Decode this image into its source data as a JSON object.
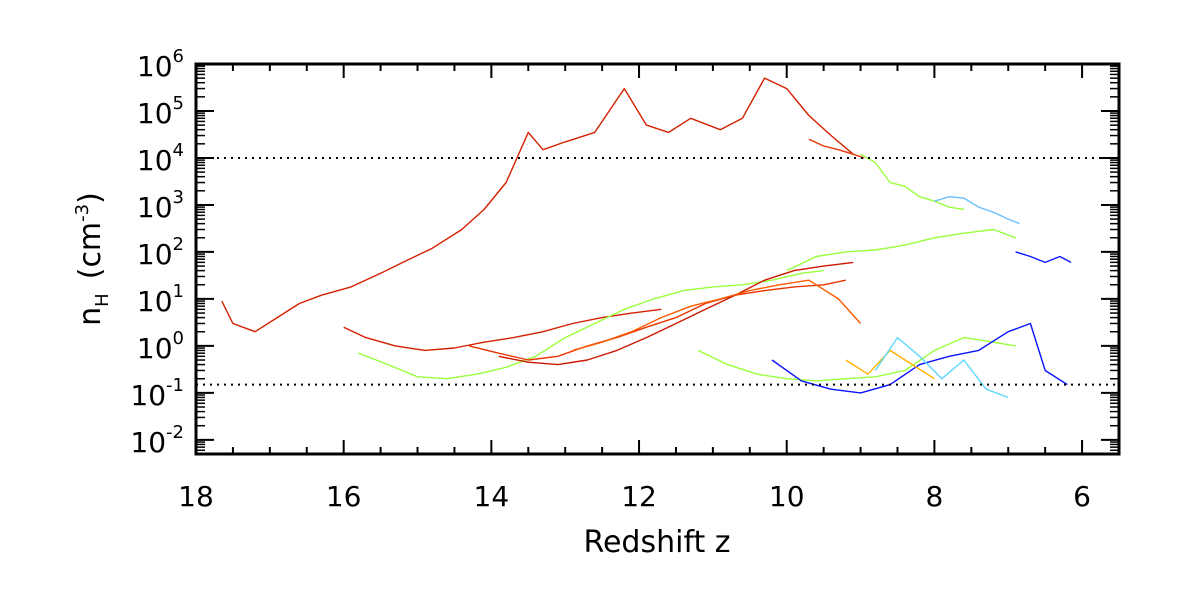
{
  "chart_data": {
    "type": "line",
    "xlabel": "Redshift z",
    "ylabel": {
      "symbol": "n",
      "subscript": "H",
      "unit_open": "(cm",
      "unit_exp": "-3",
      "unit_close": ")"
    },
    "x_axis": {
      "range": [
        18,
        5.5
      ],
      "reversed": true,
      "ticks": [
        "18",
        "16",
        "14",
        "12",
        "10",
        "8",
        "6"
      ],
      "tick_values": [
        18,
        16,
        14,
        12,
        10,
        8,
        6
      ]
    },
    "y_axis": {
      "scale": "log",
      "range": [
        0.005,
        1000000
      ],
      "ticks": [
        {
          "value": 1000000,
          "base": "10",
          "exp": "6"
        },
        {
          "value": 100000,
          "base": "10",
          "exp": "5"
        },
        {
          "value": 10000,
          "base": "10",
          "exp": "4"
        },
        {
          "value": 1000,
          "base": "10",
          "exp": "3"
        },
        {
          "value": 100,
          "base": "10",
          "exp": "2"
        },
        {
          "value": 10,
          "base": "10",
          "exp": "1"
        },
        {
          "value": 1,
          "base": "10",
          "exp": "0"
        },
        {
          "value": 0.1,
          "base": "10",
          "exp": "-1"
        },
        {
          "value": 0.01,
          "base": "10",
          "exp": "-2"
        }
      ]
    },
    "reference_lines": [
      {
        "y": 10000,
        "style": "dotted"
      },
      {
        "y": 0.15,
        "style": "dotted"
      }
    ],
    "grid": false,
    "legend": "none",
    "series": [
      {
        "color": "#d42000",
        "x": [
          17.65,
          17.5,
          17.2,
          16.9,
          16.6,
          16.3,
          15.9,
          15.5,
          15.2,
          14.8,
          14.4,
          14.1,
          13.8,
          13.5,
          13.3,
          13.0,
          12.6,
          12.2,
          11.9,
          11.6,
          11.3,
          10.9,
          10.6,
          10.3,
          10.0,
          9.7,
          9.4,
          9.1
        ],
        "y": [
          9,
          3,
          2,
          4,
          8,
          12,
          18,
          35,
          60,
          120,
          300,
          800,
          3000,
          35000,
          15000,
          22000,
          35000,
          300000,
          50000,
          35000,
          70000,
          40000,
          70000,
          500000,
          300000,
          80000,
          30000,
          12000
        ]
      },
      {
        "color": "#e83400",
        "x": [
          9.7,
          9.5,
          9.3,
          9.1,
          8.95
        ],
        "y": [
          25000,
          18000,
          15000,
          12000,
          10000
        ]
      },
      {
        "color": "#9aff3c",
        "x": [
          9.0,
          8.8,
          8.6,
          8.4,
          8.2,
          8.0,
          7.8,
          7.6
        ],
        "y": [
          12000,
          8000,
          3000,
          2500,
          1500,
          1200,
          900,
          800
        ]
      },
      {
        "color": "#6cbfff",
        "x": [
          8.0,
          7.8,
          7.6,
          7.4,
          7.2,
          7.0,
          6.85
        ],
        "y": [
          1200,
          1500,
          1400,
          900,
          700,
          500,
          400
        ]
      },
      {
        "color": "#0a14ff",
        "x": [
          6.9,
          6.7,
          6.5,
          6.3,
          6.15
        ],
        "y": [
          100,
          80,
          60,
          80,
          60
        ]
      },
      {
        "color": "#9aff3c",
        "x": [
          10.0,
          9.6,
          9.2,
          8.8,
          8.4,
          8.0,
          7.6,
          7.2,
          6.9
        ],
        "y": [
          40,
          80,
          100,
          110,
          140,
          200,
          250,
          300,
          200
        ]
      },
      {
        "color": "#d42000",
        "x": [
          16.0,
          15.7,
          15.3,
          14.9,
          14.5,
          14.1,
          13.7,
          13.3,
          12.9,
          12.5,
          12.1,
          11.7
        ],
        "y": [
          2.5,
          1.5,
          1.0,
          0.8,
          0.9,
          1.2,
          1.5,
          2.0,
          3.0,
          4.0,
          5.0,
          6.0
        ]
      },
      {
        "color": "#9aff3c",
        "x": [
          15.8,
          15.4,
          15.0,
          14.6,
          14.2,
          13.8,
          13.4,
          13.0,
          12.6,
          12.2,
          11.8,
          11.4,
          11.0,
          10.6,
          10.2,
          9.8,
          9.5
        ],
        "y": [
          0.7,
          0.4,
          0.22,
          0.2,
          0.25,
          0.35,
          0.6,
          1.5,
          3,
          6,
          10,
          15,
          18,
          20,
          25,
          35,
          40
        ]
      },
      {
        "color": "#e83400",
        "x": [
          14.3,
          13.9,
          13.5,
          13.1,
          12.7,
          12.3,
          11.9,
          11.5,
          11.1,
          10.7,
          10.3,
          9.9,
          9.5,
          9.2
        ],
        "y": [
          1.0,
          0.7,
          0.5,
          0.6,
          1.0,
          1.5,
          2.5,
          4,
          8,
          12,
          15,
          18,
          20,
          25
        ]
      },
      {
        "color": "#cc1800",
        "x": [
          13.9,
          13.5,
          13.1,
          12.7,
          12.3,
          11.9,
          11.5,
          11.1,
          10.7,
          10.3,
          9.9,
          9.5,
          9.1
        ],
        "y": [
          0.6,
          0.45,
          0.4,
          0.5,
          0.8,
          1.5,
          3,
          6,
          12,
          25,
          40,
          50,
          60
        ]
      },
      {
        "color": "#ff5a00",
        "x": [
          12.9,
          12.5,
          12.1,
          11.7,
          11.3,
          10.9,
          10.5,
          10.1,
          9.7,
          9.3,
          9.0
        ],
        "y": [
          0.8,
          1.2,
          2,
          4,
          7,
          10,
          15,
          20,
          25,
          10,
          3
        ]
      },
      {
        "color": "#9aff3c",
        "x": [
          11.2,
          10.8,
          10.4,
          10.0,
          9.6,
          9.2,
          8.8,
          8.4,
          8.0,
          7.6,
          7.2,
          6.9
        ],
        "y": [
          0.8,
          0.4,
          0.25,
          0.2,
          0.18,
          0.2,
          0.22,
          0.3,
          0.8,
          1.5,
          1.2,
          1.0
        ]
      },
      {
        "color": "#0a14ff",
        "x": [
          10.2,
          9.8,
          9.4,
          9.0,
          8.6,
          8.2,
          7.8,
          7.4,
          7.0,
          6.7,
          6.5,
          6.2
        ],
        "y": [
          0.5,
          0.18,
          0.12,
          0.1,
          0.15,
          0.4,
          0.6,
          0.8,
          2.0,
          3.0,
          0.3,
          0.15
        ]
      },
      {
        "color": "#ffb000",
        "x": [
          9.2,
          8.9,
          8.6,
          8.3,
          8.0
        ],
        "y": [
          0.5,
          0.25,
          0.8,
          0.4,
          0.2
        ]
      },
      {
        "color": "#5cd9ff",
        "x": [
          8.8,
          8.5,
          8.2,
          7.9,
          7.6,
          7.3,
          7.0
        ],
        "y": [
          0.3,
          1.5,
          0.6,
          0.2,
          0.5,
          0.12,
          0.08
        ]
      }
    ]
  }
}
